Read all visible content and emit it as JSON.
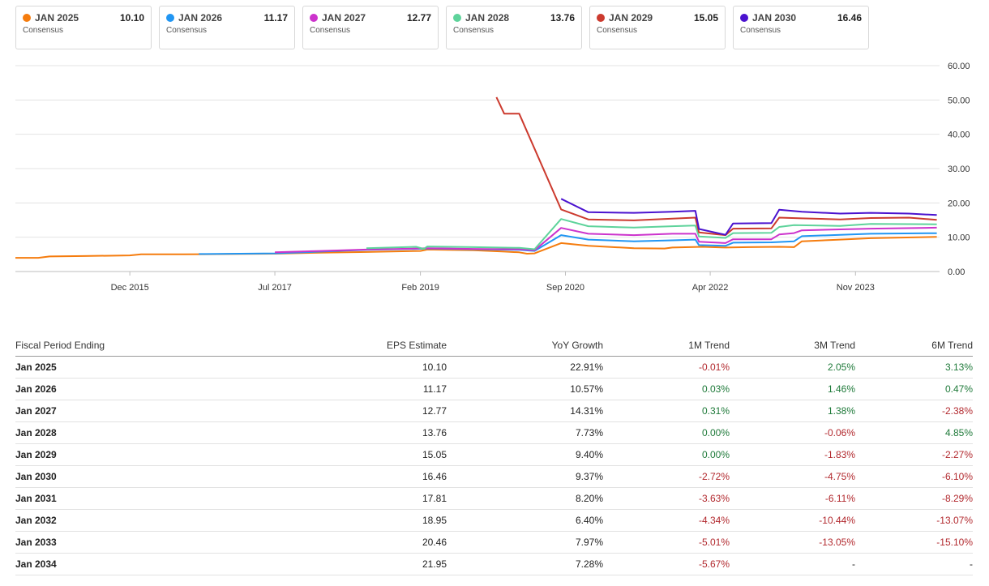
{
  "legend": [
    {
      "name": "JAN 2025",
      "value": "10.10",
      "sub": "Consensus",
      "color": "#f57c0e"
    },
    {
      "name": "JAN 2026",
      "value": "11.17",
      "sub": "Consensus",
      "color": "#2196f3"
    },
    {
      "name": "JAN 2027",
      "value": "12.77",
      "sub": "Consensus",
      "color": "#cc33cc"
    },
    {
      "name": "JAN 2028",
      "value": "13.76",
      "sub": "Consensus",
      "color": "#5ed39b"
    },
    {
      "name": "JAN 2029",
      "value": "15.05",
      "sub": "Consensus",
      "color": "#cc3a2e"
    },
    {
      "name": "JAN 2030",
      "value": "16.46",
      "sub": "Consensus",
      "color": "#4a12cf"
    }
  ],
  "chart_data": {
    "type": "line",
    "title": "",
    "xlabel": "",
    "ylabel": "",
    "ylim": [
      0,
      60
    ],
    "y_ticks": [
      "0.00",
      "10.00",
      "20.00",
      "30.00",
      "40.00",
      "50.00",
      "60.00"
    ],
    "x_ticks": [
      "Dec 2015",
      "Jul 2017",
      "Feb 2019",
      "Sep 2020",
      "Apr 2022",
      "Nov 2023"
    ],
    "x_range": [
      "2014-09-01",
      "2024-10-01"
    ],
    "grid": "horizontal",
    "series": [
      {
        "name": "JAN 2025",
        "color": "#f57c0e",
        "points": [
          [
            "2014-09-01",
            4.0
          ],
          [
            "2014-12-01",
            4.0
          ],
          [
            "2015-01-15",
            4.4
          ],
          [
            "2015-06-01",
            4.5
          ],
          [
            "2015-12-01",
            4.7
          ],
          [
            "2016-01-15",
            5.0
          ],
          [
            "2016-07-01",
            5.0
          ],
          [
            "2017-01-01",
            5.1
          ],
          [
            "2017-07-01",
            5.2
          ],
          [
            "2018-01-01",
            5.5
          ],
          [
            "2018-07-01",
            5.7
          ],
          [
            "2019-02-01",
            6.0
          ],
          [
            "2019-03-01",
            6.4
          ],
          [
            "2019-09-01",
            6.2
          ],
          [
            "2020-01-01",
            5.8
          ],
          [
            "2020-03-01",
            5.6
          ],
          [
            "2020-04-01",
            5.2
          ],
          [
            "2020-05-01",
            5.3
          ],
          [
            "2020-08-15",
            8.3
          ],
          [
            "2020-12-01",
            7.5
          ],
          [
            "2021-06-01",
            6.8
          ],
          [
            "2021-10-01",
            6.7
          ],
          [
            "2021-11-01",
            7.0
          ],
          [
            "2022-03-01",
            7.2
          ],
          [
            "2022-06-01",
            7.0
          ],
          [
            "2022-09-01",
            7.1
          ],
          [
            "2023-01-01",
            7.2
          ],
          [
            "2023-03-01",
            7.1
          ],
          [
            "2023-04-01",
            8.8
          ],
          [
            "2023-09-01",
            9.3
          ],
          [
            "2024-01-01",
            9.7
          ],
          [
            "2024-09-20",
            10.1
          ]
        ]
      },
      {
        "name": "JAN 2026",
        "color": "#2196f3",
        "points": [
          [
            "2016-09-01",
            5.1
          ],
          [
            "2017-07-01",
            5.3
          ],
          [
            "2018-01-01",
            5.8
          ],
          [
            "2018-07-01",
            6.3
          ],
          [
            "2019-01-15",
            6.6
          ],
          [
            "2019-03-01",
            6.7
          ],
          [
            "2019-09-01",
            6.5
          ],
          [
            "2020-03-01",
            6.3
          ],
          [
            "2020-05-01",
            6.0
          ],
          [
            "2020-08-15",
            10.6
          ],
          [
            "2020-12-01",
            9.3
          ],
          [
            "2021-06-01",
            8.8
          ],
          [
            "2021-11-01",
            9.1
          ],
          [
            "2022-02-01",
            9.3
          ],
          [
            "2022-02-15",
            7.7
          ],
          [
            "2022-06-01",
            7.5
          ],
          [
            "2022-07-01",
            8.4
          ],
          [
            "2022-12-01",
            8.5
          ],
          [
            "2023-03-01",
            8.8
          ],
          [
            "2023-04-01",
            10.3
          ],
          [
            "2024-01-01",
            11.0
          ],
          [
            "2024-09-20",
            11.17
          ]
        ]
      },
      {
        "name": "JAN 2027",
        "color": "#cc33cc",
        "points": [
          [
            "2017-07-01",
            5.6
          ],
          [
            "2018-01-01",
            6.0
          ],
          [
            "2018-07-01",
            6.4
          ],
          [
            "2019-01-15",
            6.7
          ],
          [
            "2019-03-01",
            6.8
          ],
          [
            "2019-09-01",
            6.6
          ],
          [
            "2020-03-01",
            6.5
          ],
          [
            "2020-05-01",
            6.2
          ],
          [
            "2020-08-15",
            12.7
          ],
          [
            "2020-12-01",
            11.0
          ],
          [
            "2021-06-01",
            10.6
          ],
          [
            "2021-11-01",
            11.0
          ],
          [
            "2022-02-01",
            11.0
          ],
          [
            "2022-02-15",
            8.7
          ],
          [
            "2022-06-01",
            8.3
          ],
          [
            "2022-07-01",
            9.4
          ],
          [
            "2022-12-01",
            9.4
          ],
          [
            "2023-01-01",
            10.8
          ],
          [
            "2023-03-01",
            11.2
          ],
          [
            "2023-04-01",
            12.0
          ],
          [
            "2024-01-01",
            12.5
          ],
          [
            "2024-09-20",
            12.77
          ]
        ]
      },
      {
        "name": "JAN 2028",
        "color": "#5ed39b",
        "points": [
          [
            "2018-07-01",
            6.8
          ],
          [
            "2019-01-15",
            7.2
          ],
          [
            "2019-02-15",
            6.6
          ],
          [
            "2019-03-01",
            7.3
          ],
          [
            "2019-09-01",
            7.1
          ],
          [
            "2020-03-01",
            6.9
          ],
          [
            "2020-05-01",
            6.5
          ],
          [
            "2020-08-15",
            15.3
          ],
          [
            "2020-12-01",
            13.2
          ],
          [
            "2021-06-01",
            12.8
          ],
          [
            "2021-11-01",
            13.2
          ],
          [
            "2022-02-01",
            13.4
          ],
          [
            "2022-02-15",
            10.2
          ],
          [
            "2022-06-01",
            9.8
          ],
          [
            "2022-07-01",
            11.2
          ],
          [
            "2022-12-01",
            11.3
          ],
          [
            "2023-01-01",
            13.0
          ],
          [
            "2023-03-01",
            13.5
          ],
          [
            "2023-09-01",
            13.3
          ],
          [
            "2024-01-01",
            13.9
          ],
          [
            "2024-09-20",
            13.76
          ]
        ]
      },
      {
        "name": "JAN 2029",
        "color": "#cc3a2e",
        "points": [
          [
            "2019-12-01",
            50.8
          ],
          [
            "2020-01-01",
            46.0
          ],
          [
            "2020-03-01",
            46.0
          ],
          [
            "2020-08-15",
            18.1
          ],
          [
            "2020-12-01",
            15.2
          ],
          [
            "2021-06-01",
            14.9
          ],
          [
            "2021-11-01",
            15.4
          ],
          [
            "2022-02-01",
            15.7
          ],
          [
            "2022-02-15",
            11.4
          ],
          [
            "2022-06-01",
            10.6
          ],
          [
            "2022-07-01",
            12.5
          ],
          [
            "2022-12-01",
            12.6
          ],
          [
            "2023-01-01",
            15.7
          ],
          [
            "2023-04-01",
            15.5
          ],
          [
            "2023-09-01",
            15.2
          ],
          [
            "2024-01-01",
            15.6
          ],
          [
            "2024-06-01",
            15.7
          ],
          [
            "2024-09-20",
            15.05
          ]
        ]
      },
      {
        "name": "JAN 2030",
        "color": "#4a12cf",
        "points": [
          [
            "2020-08-15",
            21.2
          ],
          [
            "2020-12-01",
            17.3
          ],
          [
            "2021-06-01",
            17.1
          ],
          [
            "2021-11-01",
            17.4
          ],
          [
            "2022-02-01",
            17.7
          ],
          [
            "2022-02-15",
            12.4
          ],
          [
            "2022-06-01",
            10.7
          ],
          [
            "2022-07-01",
            14.0
          ],
          [
            "2022-12-01",
            14.1
          ],
          [
            "2023-01-01",
            18.0
          ],
          [
            "2023-04-01",
            17.4
          ],
          [
            "2023-09-01",
            16.9
          ],
          [
            "2024-01-01",
            17.1
          ],
          [
            "2024-06-01",
            16.9
          ],
          [
            "2024-09-20",
            16.46
          ]
        ]
      }
    ]
  },
  "table": {
    "headers": [
      "Fiscal Period Ending",
      "EPS Estimate",
      "YoY Growth",
      "1M Trend",
      "3M Trend",
      "6M Trend"
    ],
    "rows": [
      [
        "Jan 2025",
        "10.10",
        "22.91%",
        "-0.01%",
        "2.05%",
        "3.13%"
      ],
      [
        "Jan 2026",
        "11.17",
        "10.57%",
        "0.03%",
        "1.46%",
        "0.47%"
      ],
      [
        "Jan 2027",
        "12.77",
        "14.31%",
        "0.31%",
        "1.38%",
        "-2.38%"
      ],
      [
        "Jan 2028",
        "13.76",
        "7.73%",
        "0.00%",
        "-0.06%",
        "4.85%"
      ],
      [
        "Jan 2029",
        "15.05",
        "9.40%",
        "0.00%",
        "-1.83%",
        "-2.27%"
      ],
      [
        "Jan 2030",
        "16.46",
        "9.37%",
        "-2.72%",
        "-4.75%",
        "-6.10%"
      ],
      [
        "Jan 2031",
        "17.81",
        "8.20%",
        "-3.63%",
        "-6.11%",
        "-8.29%"
      ],
      [
        "Jan 2032",
        "18.95",
        "6.40%",
        "-4.34%",
        "-10.44%",
        "-13.07%"
      ],
      [
        "Jan 2033",
        "20.46",
        "7.97%",
        "-5.01%",
        "-13.05%",
        "-15.10%"
      ],
      [
        "Jan 2034",
        "21.95",
        "7.28%",
        "-5.67%",
        "-",
        "-"
      ]
    ]
  }
}
